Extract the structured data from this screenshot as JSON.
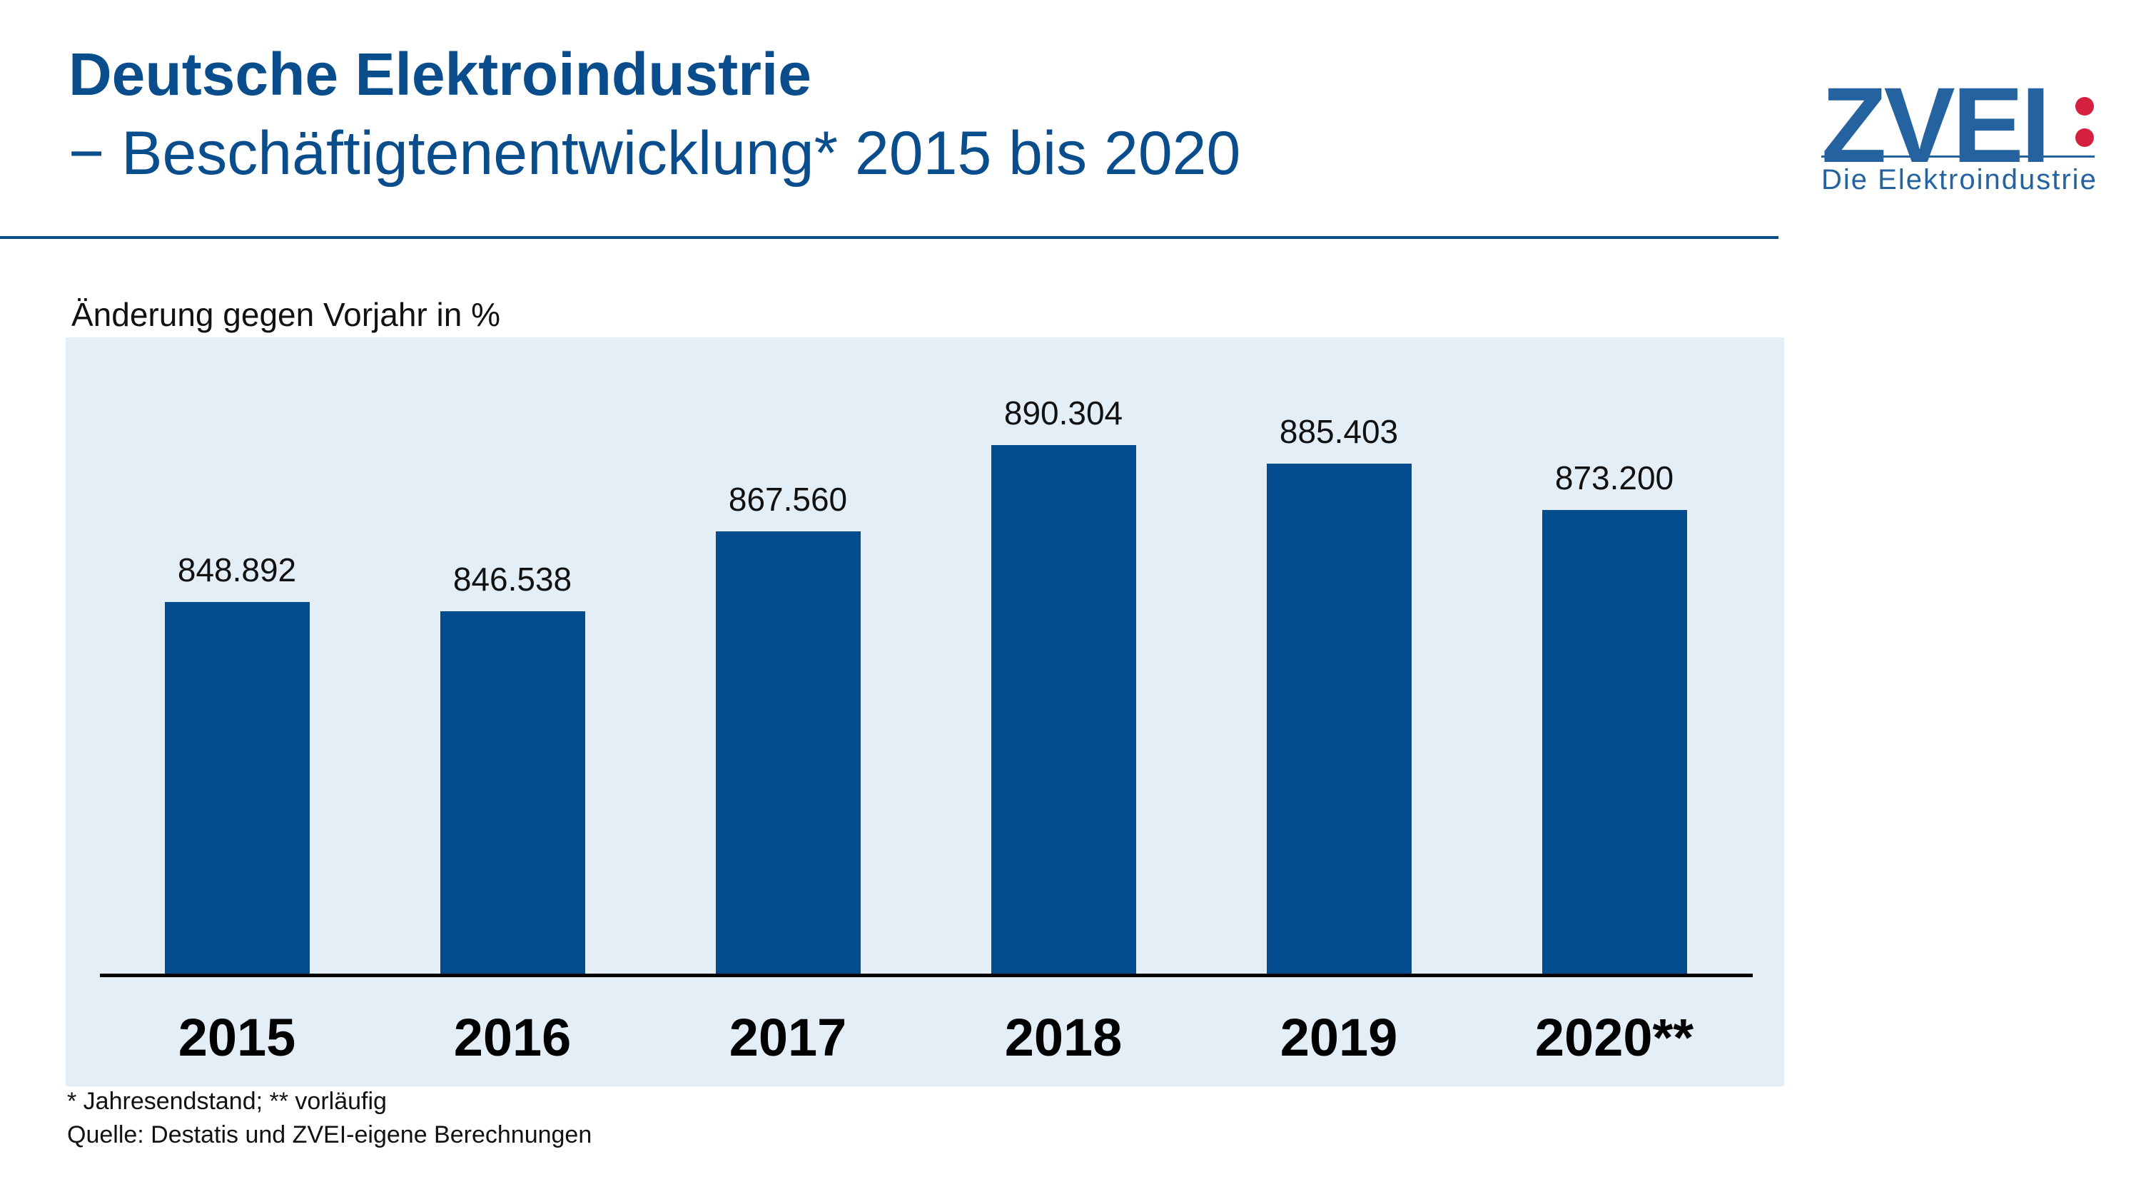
{
  "header": {
    "title": "Deutsche Elektroindustrie",
    "subtitle": "− Beschäftigtenentwicklung* 2015 bis 2020"
  },
  "logo": {
    "wordmark": "ZVEI",
    "tagline": "Die Elektroindustrie",
    "colors": {
      "blue": "#2563a0",
      "red": "#d5203f"
    }
  },
  "chart_data": {
    "type": "bar",
    "title": "Deutsche Elektroindustrie − Beschäftigtenentwicklung* 2015 bis 2020",
    "subtitle": "Änderung gegen Vorjahr in %",
    "categories": [
      "2015",
      "2016",
      "2017",
      "2018",
      "2019",
      "2020**"
    ],
    "values": [
      848892,
      846538,
      867560,
      890304,
      885403,
      873200
    ],
    "value_labels": [
      "848.892",
      "846.538",
      "867.560",
      "890.304",
      "885.403",
      "873.200"
    ],
    "xlabel": "",
    "ylabel": "Änderung gegen Vorjahr in %",
    "ylim": [
      800000,
      900000
    ],
    "grid": false,
    "legend": null,
    "bar_color": "#034c8d",
    "plot_background": "#e3eef6"
  },
  "footnotes": {
    "note": "* Jahresendstand; ** vorläufig",
    "source": "Quelle: Destatis und ZVEI-eigene Berechnungen"
  }
}
